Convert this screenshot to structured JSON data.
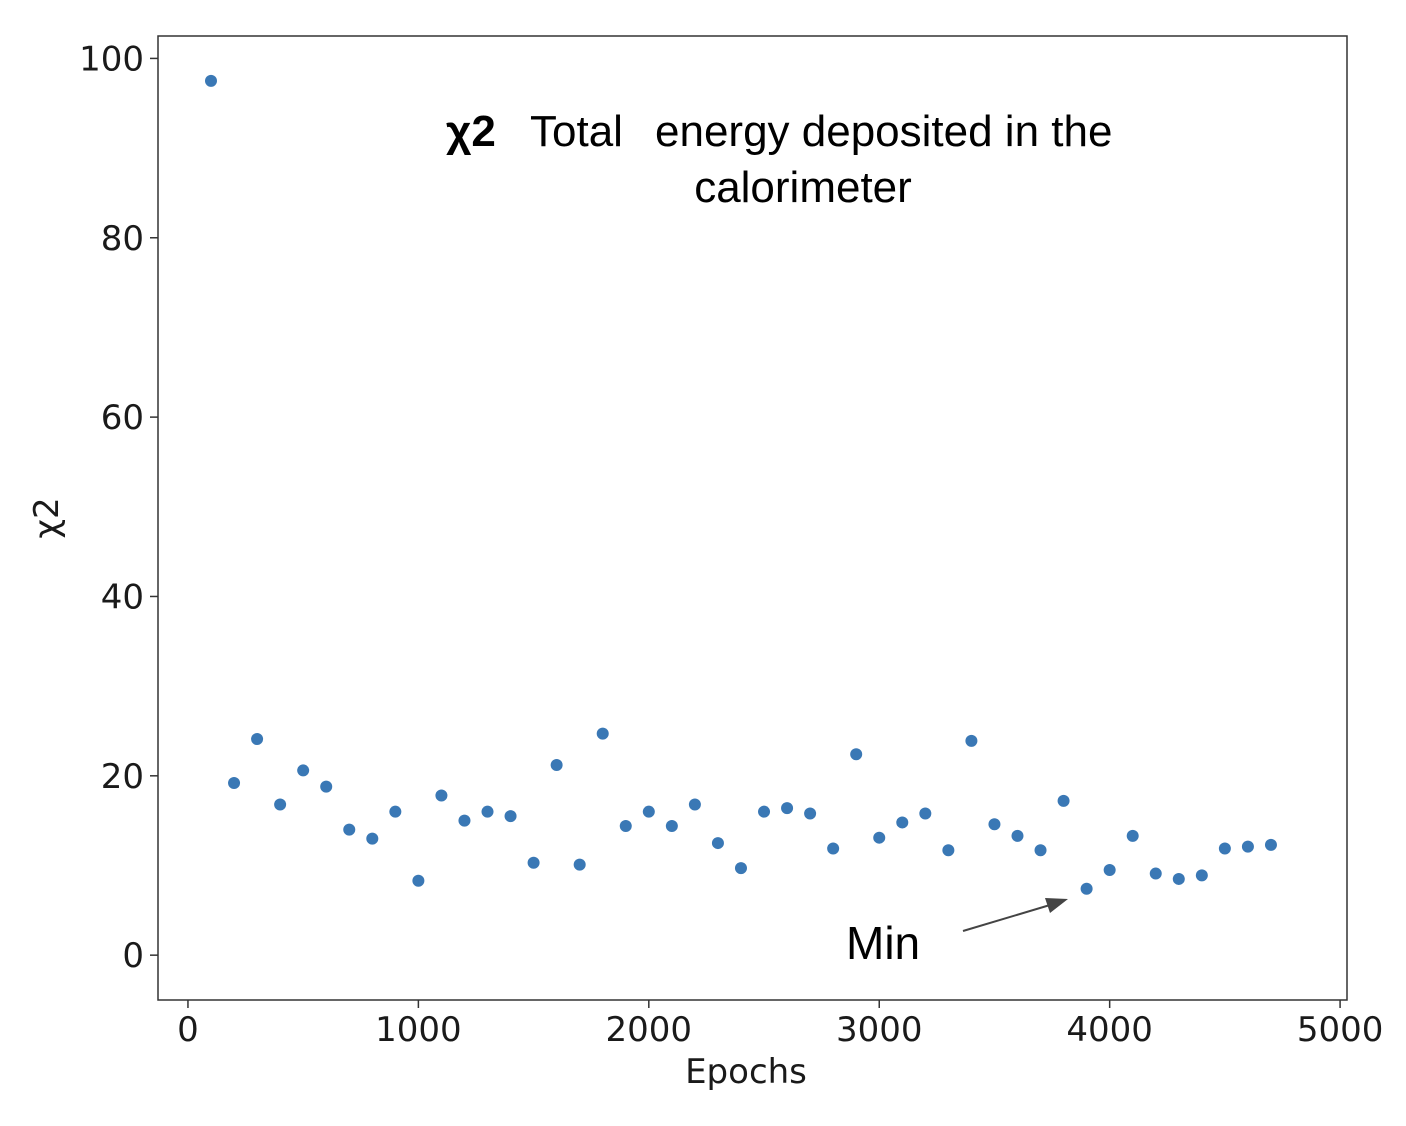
{
  "chart_data": {
    "type": "scatter",
    "xlabel": "Epochs",
    "ylabel": "χ2",
    "xlim": [
      -130,
      5030
    ],
    "ylim": [
      -5,
      102.5
    ],
    "xticks": [
      0,
      1000,
      2000,
      3000,
      4000,
      5000
    ],
    "yticks": [
      0,
      20,
      40,
      60,
      80,
      100
    ],
    "grid": false,
    "marker_color": "#3a78b5",
    "series": [
      {
        "x": [
          100,
          200,
          300,
          400,
          500,
          600,
          700,
          800,
          900,
          1000,
          1100,
          1200,
          1300,
          1400,
          1500,
          1600,
          1700,
          1800,
          1900,
          2000,
          2100,
          2200,
          2300,
          2400,
          2500,
          2600,
          2700,
          2800,
          2900,
          3000,
          3100,
          3200,
          3300,
          3400,
          3500,
          3600,
          3700,
          3800,
          3900,
          4000,
          4100,
          4200,
          4300,
          4400,
          4500,
          4600,
          4700
        ],
        "y": [
          97.5,
          19.2,
          24.1,
          16.8,
          20.6,
          18.8,
          14.0,
          13.0,
          16.0,
          8.3,
          17.8,
          15.0,
          16.0,
          15.5,
          10.3,
          21.2,
          10.1,
          24.7,
          14.4,
          16.0,
          14.4,
          16.8,
          12.5,
          9.7,
          16.0,
          16.4,
          15.8,
          11.9,
          22.4,
          13.1,
          14.8,
          15.8,
          11.7,
          23.9,
          14.6,
          13.3,
          11.7,
          17.2,
          7.4,
          9.5,
          13.3,
          9.1,
          8.5,
          8.9,
          11.9,
          12.1,
          12.3
        ]
      }
    ],
    "annotations": [
      {
        "text_parts": [
          "χ2",
          "Total",
          "energy deposited in the"
        ],
        "line2": "calorimeter"
      },
      {
        "text": "Min",
        "points_to": {
          "x": 3900,
          "y": 7.4
        }
      }
    ]
  }
}
